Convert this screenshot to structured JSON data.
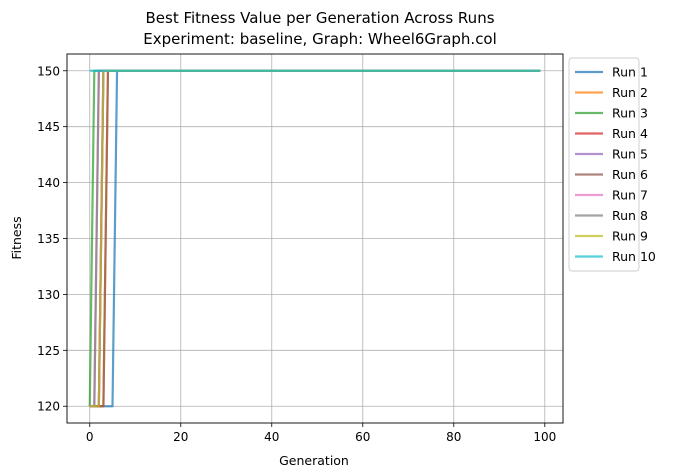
{
  "chart_data": {
    "type": "line",
    "title": "Best Fitness Value per Generation Across Runs",
    "subtitle": "Experiment: baseline, Graph: Wheel6Graph.col",
    "xlabel": "Generation",
    "ylabel": "Fitness",
    "xlim": [
      -5,
      104
    ],
    "ylim": [
      118.5,
      151.5
    ],
    "xticks": [
      0,
      20,
      40,
      60,
      80,
      100
    ],
    "yticks": [
      120,
      125,
      130,
      135,
      140,
      145,
      150
    ],
    "grid": true,
    "legend_position": "outside-upper-right",
    "x": [
      0,
      1,
      2,
      3,
      4,
      5,
      6,
      99
    ],
    "series": [
      {
        "name": "Run 1",
        "color": "#1f77b4",
        "values": [
          120,
          120,
          120,
          120,
          120,
          120,
          150,
          150
        ]
      },
      {
        "name": "Run 2",
        "color": "#ff7f0e",
        "values": [
          120,
          120,
          120,
          120,
          150,
          150,
          150,
          150
        ]
      },
      {
        "name": "Run 3",
        "color": "#2ca02c",
        "values": [
          120,
          150,
          150,
          150,
          150,
          150,
          150,
          150
        ]
      },
      {
        "name": "Run 4",
        "color": "#d62728",
        "values": [
          120,
          120,
          120,
          150,
          150,
          150,
          150,
          150
        ]
      },
      {
        "name": "Run 5",
        "color": "#9467bd",
        "values": [
          120,
          120,
          120,
          150,
          150,
          150,
          150,
          150
        ]
      },
      {
        "name": "Run 6",
        "color": "#8c564b",
        "values": [
          120,
          120,
          120,
          120,
          150,
          150,
          150,
          150
        ]
      },
      {
        "name": "Run 7",
        "color": "#e377c2",
        "values": [
          120,
          120,
          150,
          150,
          150,
          150,
          150,
          150
        ]
      },
      {
        "name": "Run 8",
        "color": "#7f7f7f",
        "values": [
          120,
          120,
          150,
          150,
          150,
          150,
          150,
          150
        ]
      },
      {
        "name": "Run 9",
        "color": "#bcbd22",
        "values": [
          120,
          120,
          120,
          150,
          150,
          150,
          150,
          150
        ]
      },
      {
        "name": "Run 10",
        "color": "#17becf",
        "values": [
          150,
          150,
          150,
          150,
          150,
          150,
          150,
          150
        ]
      }
    ]
  }
}
